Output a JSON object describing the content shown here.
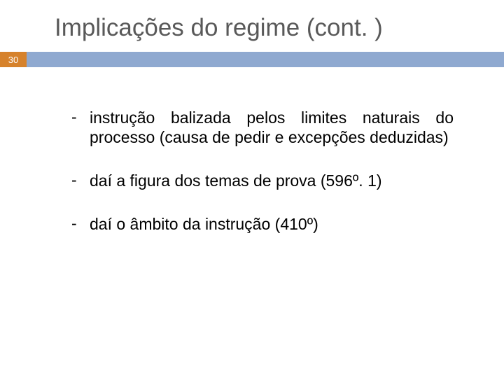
{
  "title": "Implicações do regime (cont. )",
  "slide_number": "30",
  "colors": {
    "title_color": "#595959",
    "badge_bg": "#d6822c",
    "badge_text": "#ffffff",
    "bar_bg": "#8fa9d0",
    "body_text": "#000000",
    "background": "#ffffff"
  },
  "typography": {
    "title_fontsize": 35,
    "body_fontsize": 23,
    "badge_fontsize": 13
  },
  "bullets": [
    {
      "dash": "-",
      "text": "instrução balizada pelos limites naturais do processo (causa de pedir e excepções deduzidas)"
    },
    {
      "dash": "-",
      "text": "daí a figura dos temas de prova (596º. 1)"
    },
    {
      "dash": "-",
      "text": "daí o âmbito da instrução (410º)"
    }
  ]
}
